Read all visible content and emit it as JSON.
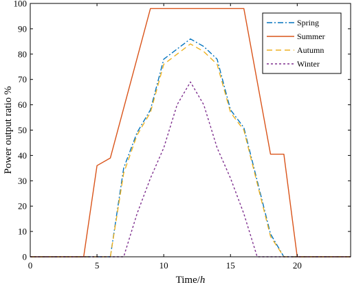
{
  "chart_data": {
    "type": "line",
    "xlabel": "Time/",
    "xlabel_unit": "h",
    "ylabel": "Power output ratio %",
    "xlim": [
      0,
      24
    ],
    "ylim": [
      0,
      100
    ],
    "xticks": [
      "0",
      "5",
      "10",
      "15",
      "20"
    ],
    "xtick_values": [
      0,
      5,
      10,
      15,
      20
    ],
    "yticks": [
      "0",
      "10",
      "20",
      "30",
      "40",
      "50",
      "60",
      "70",
      "80",
      "90",
      "100"
    ],
    "ytick_values": [
      0,
      10,
      20,
      30,
      40,
      50,
      60,
      70,
      80,
      90,
      100
    ],
    "grid": false,
    "legend_position": "top-right",
    "series": [
      {
        "name": "Spring",
        "color": "#0072BD",
        "style": "dashdot",
        "x": [
          0,
          6,
          7,
          8,
          9,
          10,
          11,
          12,
          13,
          14,
          15,
          16,
          17,
          18,
          19,
          24
        ],
        "y": [
          0,
          0,
          35,
          49,
          58,
          78,
          82,
          86,
          83,
          78,
          58,
          51,
          30,
          9,
          0,
          0
        ]
      },
      {
        "name": "Summer",
        "color": "#D95319",
        "style": "solid",
        "x": [
          0,
          4,
          5,
          6,
          9,
          16,
          18,
          19,
          20,
          24
        ],
        "y": [
          0,
          0,
          36,
          39,
          98,
          98,
          40.5,
          40.5,
          0,
          0
        ]
      },
      {
        "name": "Autumn",
        "color": "#EDB120",
        "style": "dashed",
        "x": [
          0,
          6,
          7,
          8,
          9,
          10,
          11,
          12,
          13,
          14,
          15,
          16,
          17,
          18,
          19,
          24
        ],
        "y": [
          0,
          0,
          33,
          48,
          57,
          76,
          80,
          84,
          81,
          76,
          57,
          50,
          29,
          8,
          0,
          0
        ]
      },
      {
        "name": "Winter",
        "color": "#7E2F8E",
        "style": "dotted",
        "x": [
          0,
          7,
          8,
          9,
          10,
          11,
          12,
          13,
          14,
          15,
          16,
          17,
          24
        ],
        "y": [
          0,
          0,
          17,
          31,
          43,
          60,
          69,
          60,
          43,
          31,
          17,
          0,
          0
        ]
      }
    ]
  }
}
